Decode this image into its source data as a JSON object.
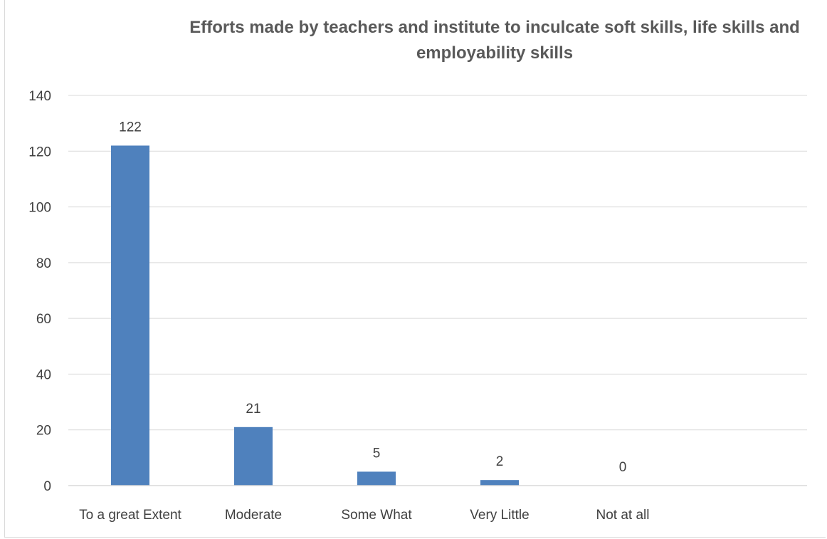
{
  "chart_data": {
    "type": "bar",
    "title_lines": [
      "Efforts made by teachers and institute to inculcate soft skills, life skills and",
      "employability skills"
    ],
    "categories": [
      "To a great Extent",
      "Moderate",
      "Some What",
      "Very Little",
      "Not at all"
    ],
    "values": [
      122,
      21,
      5,
      2,
      0
    ],
    "data_labels": [
      "122",
      "21",
      "5",
      "2",
      "0"
    ],
    "y_ticks": [
      0,
      20,
      40,
      60,
      80,
      100,
      120,
      140
    ],
    "ylim": [
      0,
      140
    ],
    "xlabel": "",
    "ylabel": "",
    "grid": true,
    "legend": "none",
    "colors": {
      "bar": "#4f81bd",
      "grid": "#d9d9d9",
      "title": "#595959",
      "text": "#404040"
    }
  }
}
